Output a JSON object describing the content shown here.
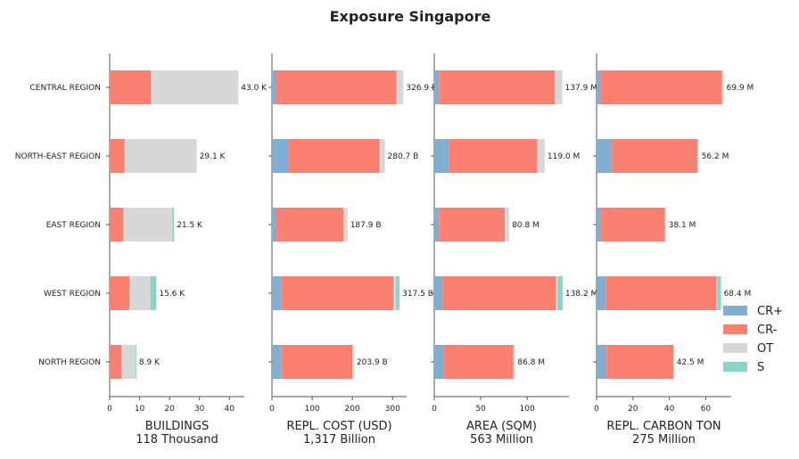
{
  "chart_data": {
    "type": "bar",
    "orientation": "horizontal",
    "stacked": true,
    "title": "Exposure Singapore",
    "categories": [
      "CENTRAL REGION",
      "NORTH-EAST REGION",
      "EAST REGION",
      "WEST REGION",
      "NORTH REGION"
    ],
    "legend": {
      "placement": "right",
      "entries": [
        {
          "name": "CR+",
          "color": "#7fb0d3"
        },
        {
          "name": "CR-",
          "color": "#fa8071"
        },
        {
          "name": "OT",
          "color": "#d8d8d8"
        },
        {
          "name": "S",
          "color": "#8dd3c7"
        }
      ]
    },
    "panels": [
      {
        "xlabel": "BUILDINGS",
        "xlabel_sub": "118 Thousand",
        "xlim": [
          0,
          45
        ],
        "xticks": [
          0,
          10,
          20,
          30,
          40
        ],
        "totals_text": [
          "43.0 K",
          "29.1 K",
          "21.5 K",
          "15.6 K",
          "8.9 K"
        ],
        "series": [
          {
            "name": "CR+",
            "values": [
              0,
              0,
              0,
              0,
              0
            ]
          },
          {
            "name": "CR-",
            "values": [
              13.8,
              5.0,
              4.6,
              6.6,
              4.0
            ]
          },
          {
            "name": "OT",
            "values": [
              29.2,
              24.1,
              16.4,
              7.0,
              4.6
            ]
          },
          {
            "name": "S",
            "values": [
              0,
              0,
              0.5,
              2.0,
              0.3
            ]
          }
        ]
      },
      {
        "xlabel": "REPL. COST (USD)",
        "xlabel_sub": "1,317 Billion",
        "xlim": [
          0,
          335
        ],
        "xticks": [
          0,
          100,
          200,
          300
        ],
        "totals_text": [
          "326.9 B",
          "280.7 B",
          "187.9 B",
          "317.5 B",
          "203.9 B"
        ],
        "series": [
          {
            "name": "CR+",
            "values": [
              10,
              40,
              10,
              24,
              24
            ]
          },
          {
            "name": "CR-",
            "values": [
              300,
              228,
              168,
              278,
              176
            ]
          },
          {
            "name": "OT",
            "values": [
              16.9,
              12.7,
              9.9,
              6.5,
              3.9
            ]
          },
          {
            "name": "S",
            "values": [
              0,
              0,
              0,
              9,
              0
            ]
          }
        ]
      },
      {
        "xlabel": "AREA (SQM)",
        "xlabel_sub": "563 Million",
        "xlim": [
          0,
          145
        ],
        "xticks": [
          0,
          50,
          100
        ],
        "totals_text": [
          "137.9 M",
          "119.0 M",
          "80.8 M",
          "138.2 M",
          "86.8 M"
        ],
        "series": [
          {
            "name": "CR+",
            "values": [
              5,
              16,
              5,
              9,
              10
            ]
          },
          {
            "name": "CR-",
            "values": [
              125,
              95,
              71,
              122,
              75
            ]
          },
          {
            "name": "OT",
            "values": [
              7.9,
              8.0,
              4.8,
              1.7,
              1.8
            ]
          },
          {
            "name": "S",
            "values": [
              0,
              0,
              0,
              5.5,
              0
            ]
          }
        ]
      },
      {
        "xlabel": "REPL. CARBON TON",
        "xlabel_sub": "275 Million",
        "xlim": [
          0,
          74
        ],
        "xticks": [
          0,
          20,
          40,
          60
        ],
        "totals_text": [
          "69.9 M",
          "56.2 M",
          "38.1 M",
          "68.4 M",
          "42.5 M"
        ],
        "series": [
          {
            "name": "CR+",
            "values": [
              2,
              8.5,
              2.5,
              5,
              5.5
            ]
          },
          {
            "name": "CR-",
            "values": [
              66.9,
              47,
              35,
              61,
              36.8
            ]
          },
          {
            "name": "OT",
            "values": [
              1.0,
              0.7,
              0.6,
              0.4,
              0.2
            ]
          },
          {
            "name": "S",
            "values": [
              0,
              0,
              0,
              2.0,
              0
            ]
          }
        ]
      }
    ]
  }
}
